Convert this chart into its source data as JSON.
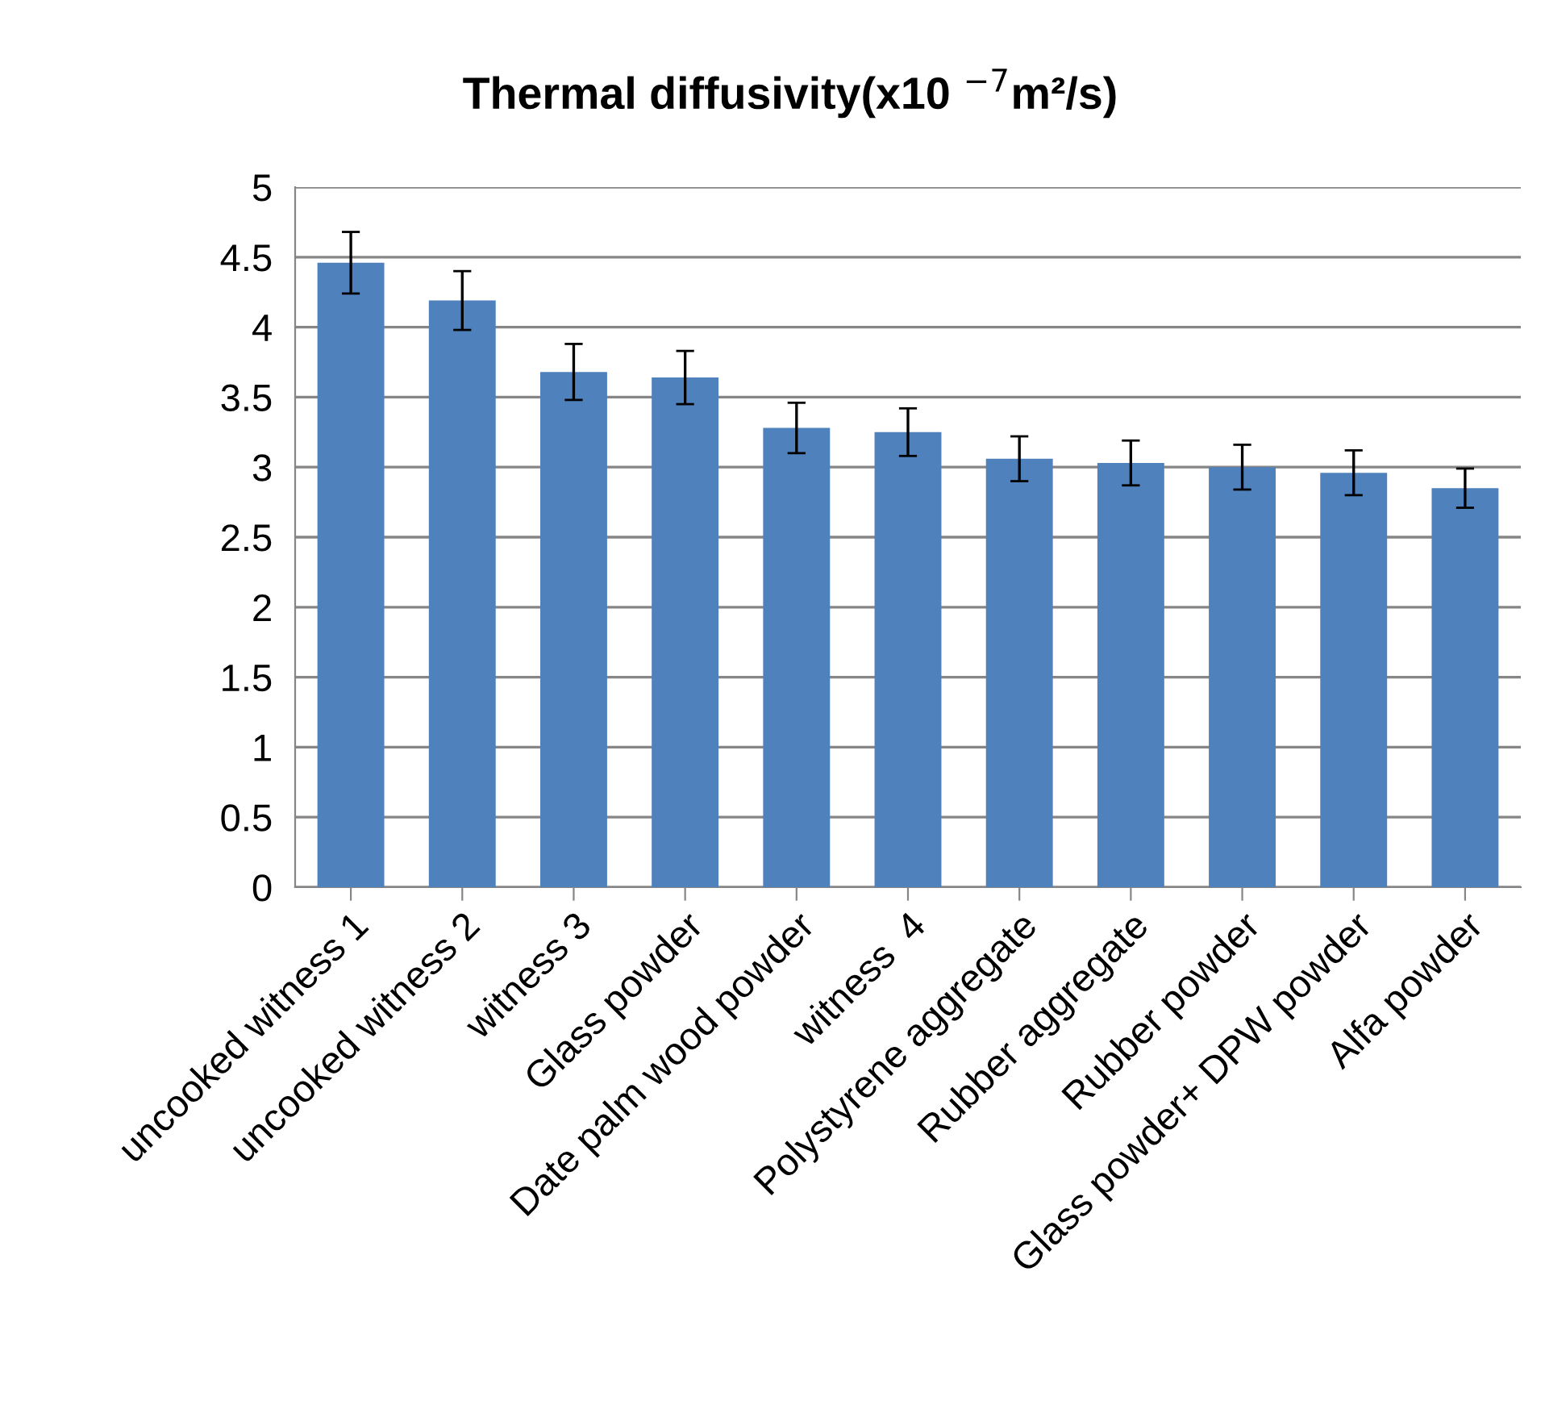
{
  "chart_data": {
    "type": "bar",
    "title": "Thermal diffusivity(x10 $^{−7}$m²/s)",
    "categories": [
      "uncooked witness 1",
      "uncooked witness 2",
      "witness 3",
      "Glass powder",
      "Date palm wood powder",
      "witness  4",
      "Polystyrene aggregate",
      "Rubber aggregate",
      "Rubber powder",
      "Glass powder+ DPW powder",
      "Alfa powder"
    ],
    "values": [
      4.46,
      4.19,
      3.68,
      3.64,
      3.28,
      3.25,
      3.06,
      3.03,
      3.0,
      2.96,
      2.85
    ],
    "errors": [
      0.22,
      0.21,
      0.2,
      0.19,
      0.18,
      0.17,
      0.16,
      0.16,
      0.16,
      0.16,
      0.14
    ],
    "color": "#4f81bd",
    "ylim": [
      0,
      5
    ],
    "yticks": [
      0,
      0.5,
      1,
      1.5,
      2,
      2.5,
      3,
      3.5,
      4,
      4.5,
      5
    ],
    "grid": "y",
    "legend": false
  }
}
